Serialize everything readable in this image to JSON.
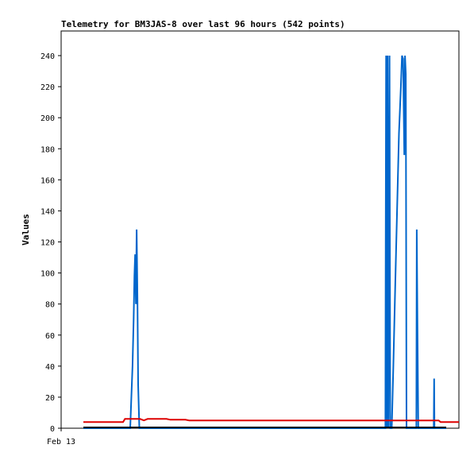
{
  "chart_data": {
    "type": "line",
    "title": "Telemetry for BM3JAS-8 over last 96 hours (542 points)",
    "ylabel": "Values",
    "xlabel": "",
    "ylim": [
      0,
      255
    ],
    "xlim": [
      0,
      96
    ],
    "yticks": [
      0,
      20,
      40,
      60,
      80,
      100,
      120,
      140,
      160,
      180,
      200,
      220,
      240
    ],
    "xtick_labels": [
      {
        "x": 0,
        "label": "Feb 13"
      }
    ],
    "grid": false,
    "legend": "none",
    "series": [
      {
        "color": "#0066cc",
        "points": [
          [
            0,
            0
          ],
          [
            12.4,
            0
          ],
          [
            13.0,
            40
          ],
          [
            13.3,
            70
          ],
          [
            13.5,
            98
          ],
          [
            13.7,
            112
          ],
          [
            13.9,
            80
          ],
          [
            14.1,
            128
          ],
          [
            14.3,
            84
          ],
          [
            14.5,
            28
          ],
          [
            14.8,
            0
          ],
          [
            79.9,
            0
          ],
          [
            80.0,
            120
          ],
          [
            80.1,
            240
          ],
          [
            80.3,
            0
          ],
          [
            80.5,
            240
          ],
          [
            80.7,
            0
          ],
          [
            81.0,
            240
          ],
          [
            81.2,
            0
          ],
          [
            81.6,
            0
          ],
          [
            82.0,
            40
          ],
          [
            82.5,
            90
          ],
          [
            83.0,
            140
          ],
          [
            83.5,
            190
          ],
          [
            84.0,
            220
          ],
          [
            84.3,
            240
          ],
          [
            84.6,
            238
          ],
          [
            84.9,
            176
          ],
          [
            85.1,
            240
          ],
          [
            85.3,
            228
          ],
          [
            85.5,
            0
          ],
          [
            88.1,
            0
          ],
          [
            88.2,
            128
          ],
          [
            88.4,
            64
          ],
          [
            88.6,
            0
          ],
          [
            92.7,
            0
          ],
          [
            92.8,
            32
          ],
          [
            92.9,
            0
          ],
          [
            96,
            0
          ]
        ]
      },
      {
        "color": "#dd0000",
        "points": [
          [
            0,
            4
          ],
          [
            6.0,
            4
          ],
          [
            10.5,
            4
          ],
          [
            11.0,
            6
          ],
          [
            15.0,
            6
          ],
          [
            16.0,
            5
          ],
          [
            17.0,
            6
          ],
          [
            22.0,
            6
          ],
          [
            23.0,
            5.5
          ],
          [
            27.0,
            5.5
          ],
          [
            28.0,
            5
          ],
          [
            78.0,
            5
          ],
          [
            90.0,
            5
          ],
          [
            94.0,
            5
          ],
          [
            94.5,
            4
          ],
          [
            100.0,
            4
          ]
        ]
      }
    ]
  }
}
